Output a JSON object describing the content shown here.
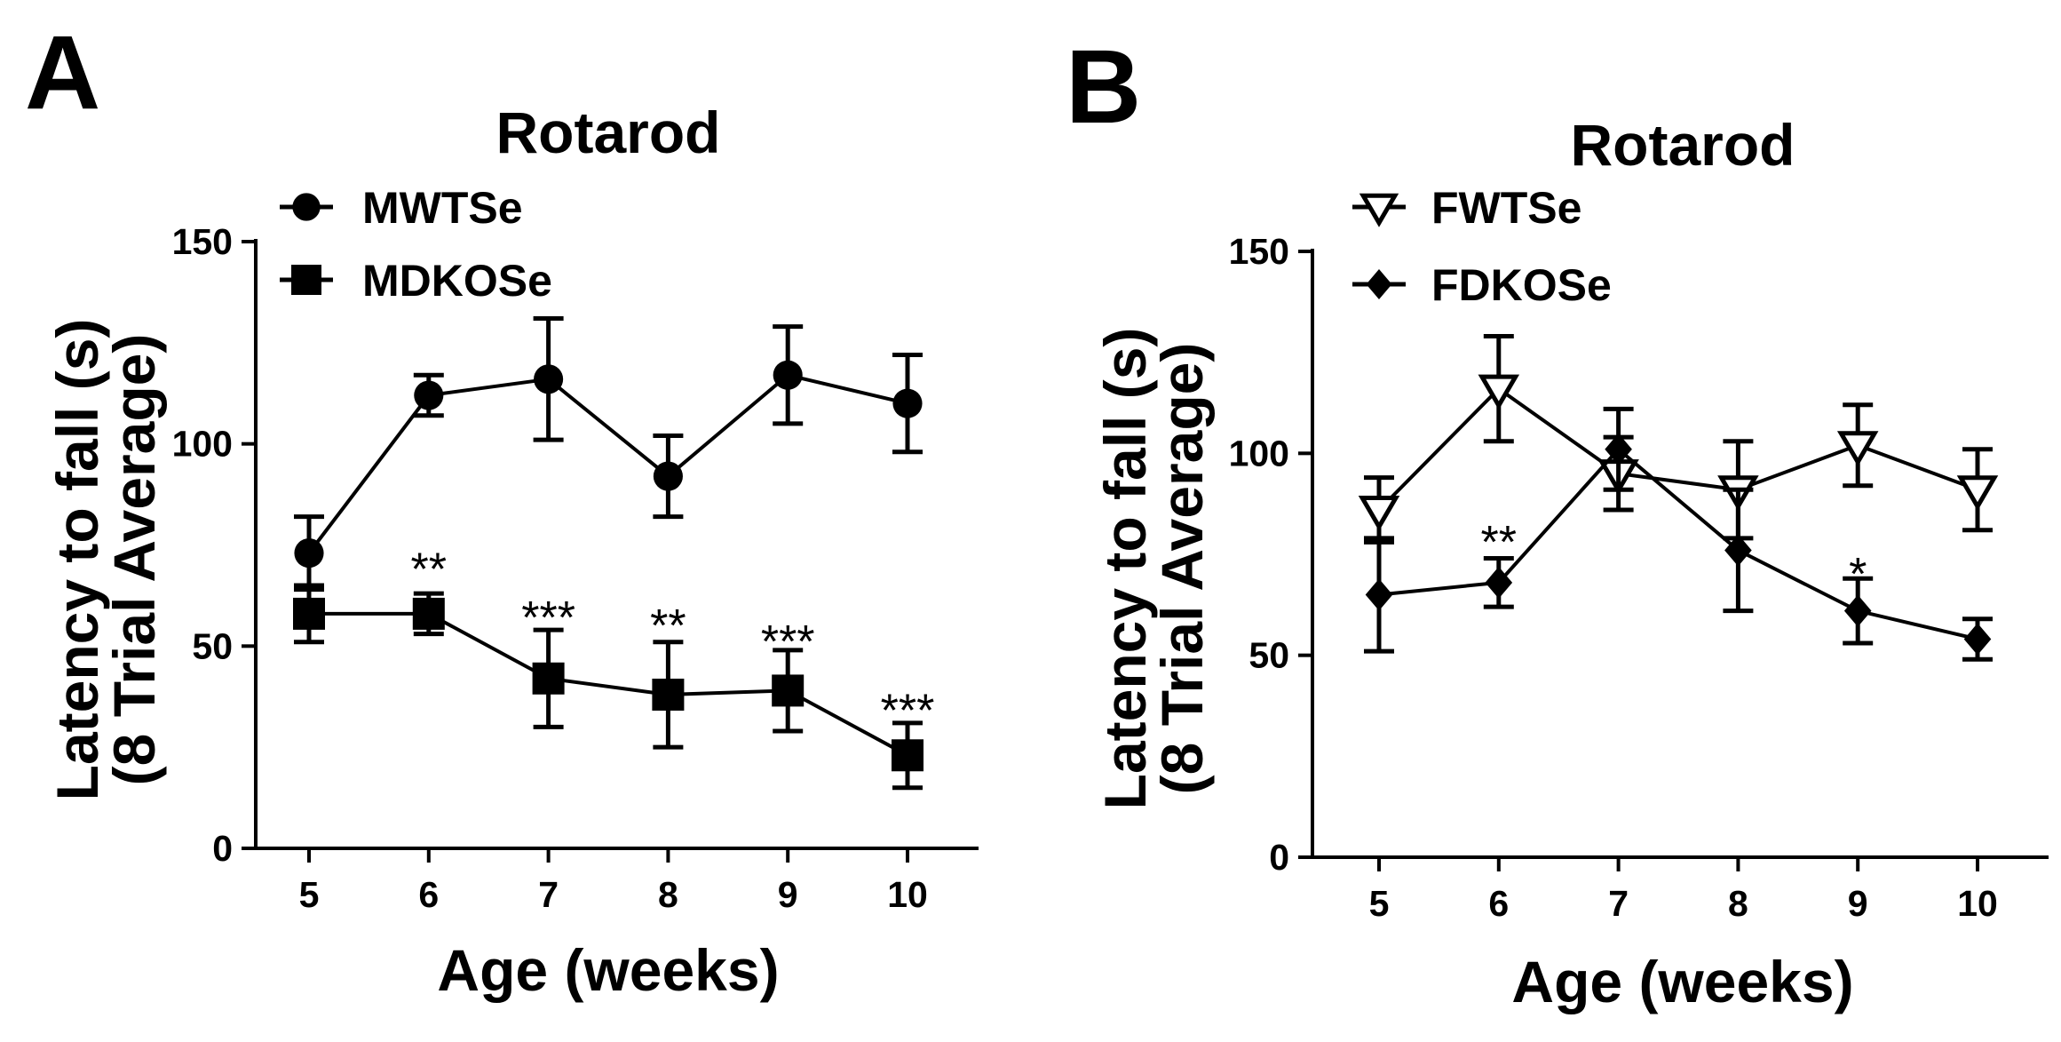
{
  "chart_data": [
    {
      "panel": "A",
      "type": "line",
      "title": "Rotarod",
      "xlabel": "Age (weeks)",
      "ylabel_line1": "Latency to fall (s)",
      "ylabel_line2": "(8 Trial Average)",
      "categories": [
        5,
        6,
        7,
        8,
        9,
        10
      ],
      "ylim": [
        0,
        150
      ],
      "yticks": [
        0,
        50,
        100,
        150
      ],
      "legend_position": "top-left",
      "series": [
        {
          "name": "MWTSe",
          "marker": "circle",
          "values": [
            73,
            112,
            116,
            92,
            117,
            110
          ],
          "errors": [
            9,
            5,
            15,
            10,
            12,
            12
          ]
        },
        {
          "name": "MDKOSe",
          "marker": "square",
          "values": [
            58,
            58,
            42,
            38,
            39,
            23
          ],
          "errors": [
            7,
            5,
            12,
            13,
            10,
            8
          ]
        }
      ],
      "annotations": [
        {
          "x": 6,
          "text": "**",
          "y": 70
        },
        {
          "x": 7,
          "text": "***",
          "y": 58
        },
        {
          "x": 8,
          "text": "**",
          "y": 56
        },
        {
          "x": 9,
          "text": "***",
          "y": 52
        },
        {
          "x": 10,
          "text": "***",
          "y": 35
        }
      ]
    },
    {
      "panel": "B",
      "type": "line",
      "title": "Rotarod",
      "xlabel": "Age (weeks)",
      "ylabel_line1": "Latency to fall (s)",
      "ylabel_line2": "(8 Trial Average)",
      "categories": [
        5,
        6,
        7,
        8,
        9,
        10
      ],
      "ylim": [
        0,
        150
      ],
      "yticks": [
        0,
        50,
        100,
        150
      ],
      "legend_position": "top-left",
      "series": [
        {
          "name": "FWTSe",
          "marker": "triangle-down-open",
          "values": [
            86,
            116,
            95,
            91,
            102,
            91
          ],
          "errors": [
            8,
            13,
            9,
            12,
            10,
            10
          ]
        },
        {
          "name": "FDKOSe",
          "marker": "diamond",
          "values": [
            65,
            68,
            101,
            76,
            61,
            54
          ],
          "errors": [
            14,
            6,
            10,
            15,
            8,
            5
          ]
        }
      ],
      "annotations": [
        {
          "x": 6,
          "text": "**",
          "y": 79
        },
        {
          "x": 9,
          "text": "*",
          "y": 71
        }
      ]
    }
  ]
}
